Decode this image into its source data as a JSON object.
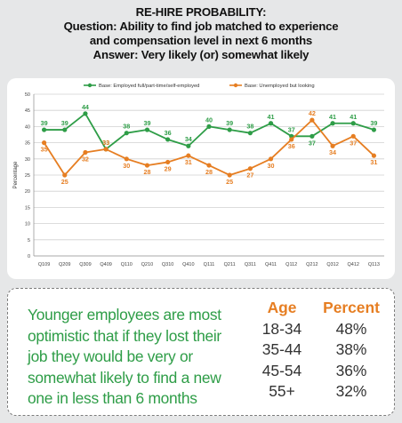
{
  "header": {
    "line1": "RE-HIRE PROBABILITY:",
    "line2": "Question: Ability to find job matched to experience",
    "line3": "and compensation level in next 6 months",
    "line4": "Answer: Very likely (or) somewhat likely"
  },
  "summary": {
    "lines": [
      "Younger employees are most",
      "optimistic that if they lost their",
      "job they would be very or",
      "somewhat likely to find a new",
      "one in less than 6 months"
    ]
  },
  "age_table": {
    "age_header": "Age",
    "percent_header": "Percent",
    "rows": [
      {
        "age": "18-34",
        "percent": "48%"
      },
      {
        "age": "35-44",
        "percent": "38%"
      },
      {
        "age": "45-54",
        "percent": "36%"
      },
      {
        "age": "55+",
        "percent": "32%"
      }
    ]
  },
  "colors": {
    "green": "#2e9d47",
    "orange": "#e67e22",
    "grid": "#d0d0d0",
    "panel_bg": "#e6e7e8"
  },
  "chart_data": {
    "type": "line",
    "ylabel": "Percentage",
    "ylim": [
      0,
      50
    ],
    "yticks": [
      0,
      5,
      10,
      15,
      20,
      25,
      30,
      35,
      40,
      45,
      50
    ],
    "grid": true,
    "legend_position": "top",
    "categories": [
      "Q109",
      "Q209",
      "Q309",
      "Q409",
      "Q110",
      "Q210",
      "Q310",
      "Q410",
      "Q111",
      "Q211",
      "Q311",
      "Q411",
      "Q112",
      "Q212",
      "Q312",
      "Q412",
      "Q113"
    ],
    "series": [
      {
        "name": "Base: Employed full/part-time/self-employed",
        "color": "#2e9d47",
        "values": [
          39,
          39,
          44,
          33,
          38,
          39,
          36,
          34,
          40,
          39,
          38,
          41,
          37,
          37,
          41,
          41,
          39
        ]
      },
      {
        "name": "Base: Unemployed but looking",
        "color": "#e67e22",
        "values": [
          35,
          25,
          32,
          33,
          30,
          28,
          29,
          31,
          28,
          25,
          27,
          30,
          36,
          42,
          34,
          37,
          31
        ]
      }
    ]
  }
}
